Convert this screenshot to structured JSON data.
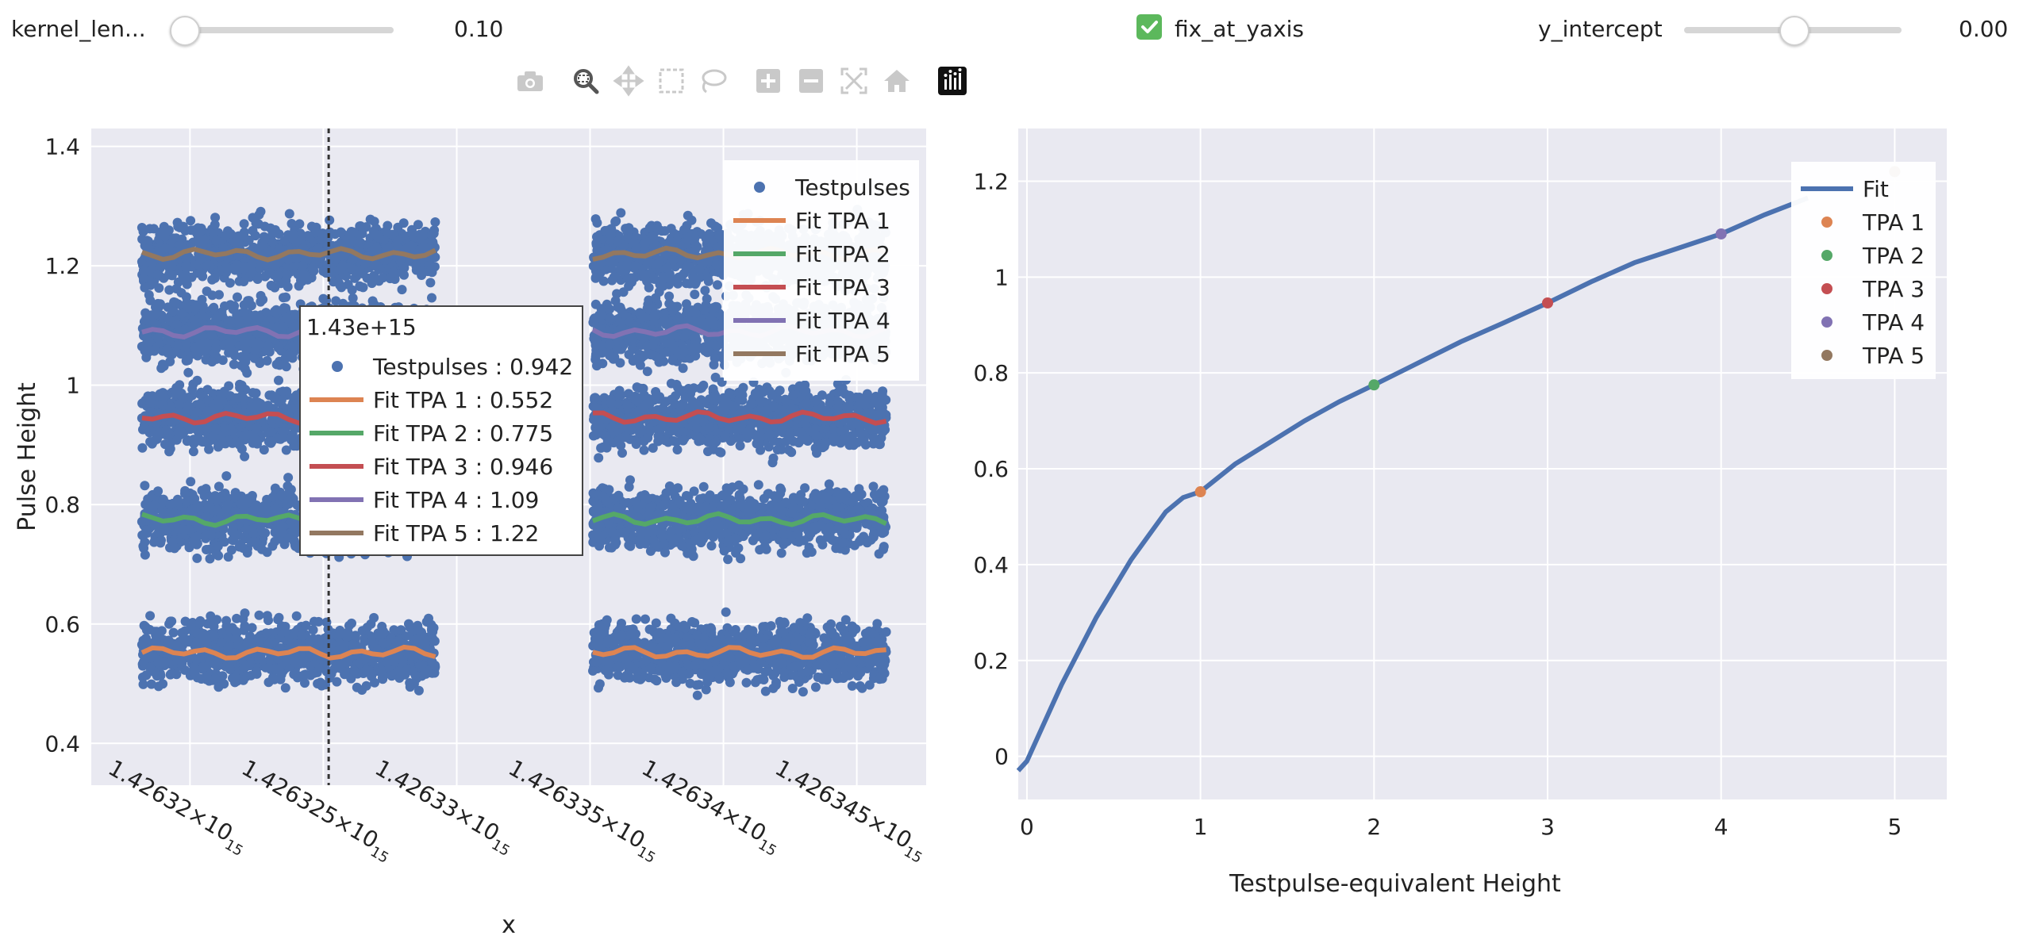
{
  "controls": {
    "kernel_label": "kernel_len...",
    "kernel_value_text": "0.10",
    "kernel_fraction": 0.0,
    "fix_label": "fix_at_yaxis",
    "fix_checked": true,
    "intercept_label": "y_intercept",
    "intercept_value_text": "0.00",
    "intercept_fraction": 0.5
  },
  "toolbar": {
    "icons": [
      "camera-icon",
      "zoom-icon",
      "pan-icon",
      "box-select-icon",
      "lasso-select-icon",
      "zoom-in-icon",
      "zoom-out-icon",
      "autoscale-icon",
      "reset-axes-icon",
      "plotly-logo-icon"
    ]
  },
  "colors": {
    "plot_bg": "#e9e9f1",
    "scatter": "#4c72b0",
    "tpa1": "#dd8452",
    "tpa2": "#55a868",
    "tpa3": "#c44e52",
    "tpa4": "#8172b3",
    "tpa5": "#937860",
    "check": "#5cb85c"
  },
  "chart_data": [
    {
      "type": "scatter",
      "title": "",
      "xlabel": "x",
      "ylabel": "Pulse Height",
      "xlim": [
        1426316300000000.0,
        1426347600000000.0
      ],
      "ylim": [
        0.33,
        1.43
      ],
      "x_ticks": [
        {
          "value": 1426320000000000.0,
          "mantissa": "1.42632",
          "base": "×10",
          "exp": "15"
        },
        {
          "value": 1426325000000000.0,
          "mantissa": "1.426325",
          "base": "×10",
          "exp": "15"
        },
        {
          "value": 1426330000000000.0,
          "mantissa": "1.42633",
          "base": "×10",
          "exp": "15"
        },
        {
          "value": 1426335000000000.0,
          "mantissa": "1.426335",
          "base": "×10",
          "exp": "15"
        },
        {
          "value": 1426340000000000.0,
          "mantissa": "1.42634",
          "base": "×10",
          "exp": "15"
        },
        {
          "value": 1426345000000000.0,
          "mantissa": "1.426345",
          "base": "×10",
          "exp": "15"
        }
      ],
      "y_ticks": [
        {
          "value": 0.4,
          "label": "0.4"
        },
        {
          "value": 0.6,
          "label": "0.6"
        },
        {
          "value": 0.8,
          "label": "0.8"
        },
        {
          "value": 1.0,
          "label": "1"
        },
        {
          "value": 1.2,
          "label": "1.2"
        },
        {
          "value": 1.4,
          "label": "1.4"
        }
      ],
      "scatter_series": {
        "name": "Testpulses",
        "segments": [
          {
            "x_start": 1426318200000000.0,
            "x_end": 1426329200000000.0
          },
          {
            "x_start": 1426335100000000.0,
            "x_end": 1426346100000000.0
          }
        ],
        "levels": [
          0.552,
          0.775,
          0.946,
          1.09,
          1.22
        ],
        "spread": 0.09
      },
      "fit_series": [
        {
          "name": "Fit TPA 1",
          "level": 0.552,
          "color_key": "tpa1"
        },
        {
          "name": "Fit TPA 2",
          "level": 0.775,
          "color_key": "tpa2"
        },
        {
          "name": "Fit TPA 3",
          "level": 0.946,
          "color_key": "tpa3"
        },
        {
          "name": "Fit TPA 4",
          "level": 1.09,
          "color_key": "tpa4"
        },
        {
          "name": "Fit TPA 5",
          "level": 1.22,
          "color_key": "tpa5"
        }
      ],
      "hover_line_x": 1426325200000000.0,
      "legend": {
        "position": "top-right",
        "items": [
          "Testpulses",
          "Fit TPA 1",
          "Fit TPA 2",
          "Fit TPA 3",
          "Fit TPA 4",
          "Fit TPA 5"
        ]
      },
      "tooltip": {
        "header": "1.43e+15",
        "rows": [
          {
            "label": "Testpulses : 0.942",
            "color_key": "scatter",
            "marker": "dot"
          },
          {
            "label": "Fit TPA 1 : 0.552",
            "color_key": "tpa1",
            "marker": "line"
          },
          {
            "label": "Fit TPA 2 : 0.775",
            "color_key": "tpa2",
            "marker": "line"
          },
          {
            "label": "Fit TPA 3 : 0.946",
            "color_key": "tpa3",
            "marker": "line"
          },
          {
            "label": "Fit TPA 4 : 1.09",
            "color_key": "tpa4",
            "marker": "line"
          },
          {
            "label": "Fit TPA 5 : 1.22",
            "color_key": "tpa5",
            "marker": "line"
          }
        ]
      }
    },
    {
      "type": "line",
      "title": "",
      "xlabel": "Testpulse-equivalent Height",
      "ylabel": "",
      "xlim": [
        -0.05,
        5.3
      ],
      "ylim": [
        -0.09,
        1.31
      ],
      "x_ticks": [
        {
          "value": 0,
          "label": "0"
        },
        {
          "value": 1,
          "label": "1"
        },
        {
          "value": 2,
          "label": "2"
        },
        {
          "value": 3,
          "label": "3"
        },
        {
          "value": 4,
          "label": "4"
        },
        {
          "value": 5,
          "label": "5"
        }
      ],
      "y_ticks": [
        {
          "value": 0,
          "label": "0"
        },
        {
          "value": 0.2,
          "label": "0.2"
        },
        {
          "value": 0.4,
          "label": "0.4"
        },
        {
          "value": 0.6,
          "label": "0.6"
        },
        {
          "value": 0.8,
          "label": "0.8"
        },
        {
          "value": 1.0,
          "label": "1"
        },
        {
          "value": 1.2,
          "label": "1.2"
        }
      ],
      "fit_line": {
        "name": "Fit",
        "x": [
          -0.05,
          0.0,
          0.1,
          0.2,
          0.3,
          0.4,
          0.5,
          0.6,
          0.7,
          0.8,
          0.9,
          1.0,
          1.2,
          1.4,
          1.6,
          1.8,
          2.0,
          2.25,
          2.5,
          2.75,
          3.0,
          3.25,
          3.5,
          3.75,
          4.0,
          4.25,
          4.5
        ],
        "y": [
          -0.03,
          -0.01,
          0.07,
          0.15,
          0.22,
          0.29,
          0.35,
          0.41,
          0.46,
          0.51,
          0.54,
          0.552,
          0.61,
          0.655,
          0.7,
          0.74,
          0.775,
          0.82,
          0.865,
          0.905,
          0.946,
          0.99,
          1.03,
          1.06,
          1.09,
          1.13,
          1.165
        ]
      },
      "points": [
        {
          "name": "TPA 1",
          "x": 1,
          "y": 0.552,
          "color_key": "tpa1"
        },
        {
          "name": "TPA 2",
          "x": 2,
          "y": 0.775,
          "color_key": "tpa2"
        },
        {
          "name": "TPA 3",
          "x": 3,
          "y": 0.946,
          "color_key": "tpa3"
        },
        {
          "name": "TPA 4",
          "x": 4,
          "y": 1.09,
          "color_key": "tpa4"
        },
        {
          "name": "TPA 5",
          "x": 5,
          "y": 1.22,
          "color_key": "tpa5"
        }
      ],
      "legend": {
        "position": "top-right",
        "items": [
          "Fit",
          "TPA 1",
          "TPA 2",
          "TPA 3",
          "TPA 4",
          "TPA 5"
        ]
      }
    }
  ]
}
